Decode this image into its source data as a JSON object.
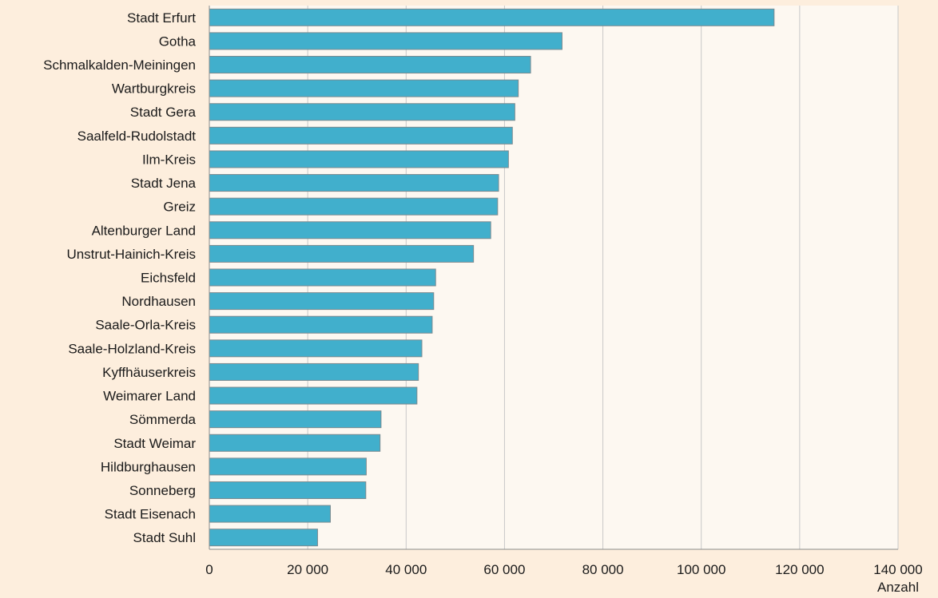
{
  "colors": {
    "page_background": "#fdeedd",
    "plot_background": "#fdf8f1",
    "bar_fill": "#41afcc",
    "bar_stroke": "#7a8a90",
    "gridline": "#c8c8c8",
    "axis": "#8c8c8c"
  },
  "chart_data": {
    "type": "bar",
    "orientation": "horizontal",
    "categories": [
      "Stadt Erfurt",
      "Gotha",
      "Schmalkalden-Meiningen",
      "Wartburgkreis",
      "Stadt Gera",
      "Saalfeld-Rudolstadt",
      "Ilm-Kreis",
      "Stadt Jena",
      "Greiz",
      "Altenburger Land",
      "Unstrut-Hainich-Kreis",
      "Eichsfeld",
      "Nordhausen",
      "Saale-Orla-Kreis",
      "Saale-Holzland-Kreis",
      "Kyffhäuserkreis",
      "Weimarer Land",
      "Sömmerda",
      "Stadt Weimar",
      "Hildburghausen",
      "Sonneberg",
      "Stadt Eisenach",
      "Stadt Suhl"
    ],
    "values": [
      114800,
      71700,
      65300,
      62800,
      62100,
      61600,
      60800,
      58800,
      58600,
      57200,
      53700,
      46000,
      45600,
      45300,
      43200,
      42500,
      42200,
      34900,
      34700,
      31900,
      31800,
      24600,
      22000
    ],
    "xlim": [
      0,
      140000
    ],
    "xticks": [
      0,
      20000,
      40000,
      60000,
      80000,
      100000,
      120000,
      140000
    ],
    "xtick_labels": [
      "0",
      "20 000",
      "40 000",
      "60 000",
      "80 000",
      "100 000",
      "120 000",
      "140 000"
    ],
    "xlabel": "Anzahl",
    "title": "",
    "grid": true
  }
}
